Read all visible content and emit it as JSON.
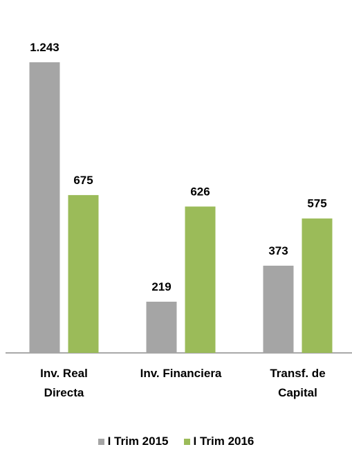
{
  "chart_data": {
    "type": "bar",
    "categories": [
      "Inv. Real Directa",
      "Inv. Financiera",
      "Transf. de Capital"
    ],
    "series": [
      {
        "name": "I Trim 2015",
        "color": "#a5a5a5",
        "values": [
          1243,
          219,
          373
        ],
        "value_labels": [
          "1.243",
          "219",
          "373"
        ]
      },
      {
        "name": "I Trim 2016",
        "color": "#9bbb59",
        "values": [
          675,
          626,
          575
        ]
      }
    ]
  }
}
